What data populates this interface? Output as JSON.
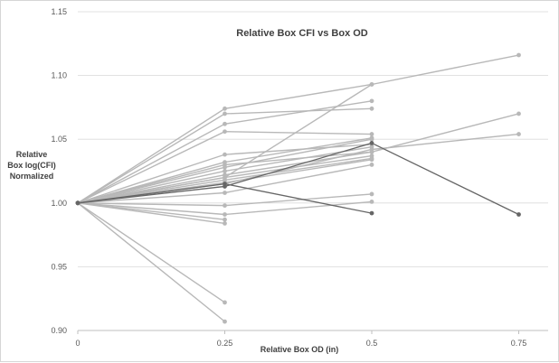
{
  "chart_data": {
    "type": "line",
    "title": "Relative Box CFI vs Box OD",
    "xlabel": "Relative Box OD (in)",
    "ylabel": [
      "Relative",
      "Box log(CFI)",
      "Normalized"
    ],
    "xlim": [
      0,
      0.8
    ],
    "ylim": [
      0.9,
      1.15
    ],
    "x_ticks": [
      0,
      0.25,
      0.5,
      0.75
    ],
    "x_tick_labels": [
      "0",
      "0.25",
      "0.5",
      "0.75"
    ],
    "y_ticks": [
      0.9,
      0.95,
      1.0,
      1.05,
      1.1,
      1.15
    ],
    "y_tick_labels": [
      "0.90",
      "0.95",
      "1.00",
      "1.05",
      "1.10",
      "1.15"
    ],
    "grid": "horizontal",
    "colors": {
      "light": "#b8b8b8",
      "dark": "#666666",
      "grid": "#d9d9d9",
      "axis": "#bfbfbf"
    },
    "series": [
      {
        "name": "s1",
        "style": "light",
        "x": [
          0,
          0.25,
          0.5
        ],
        "y": [
          1,
          1.074,
          1.093
        ]
      },
      {
        "name": "s2",
        "style": "light",
        "x": [
          0,
          0.25,
          0.5
        ],
        "y": [
          1,
          1.07,
          1.074
        ]
      },
      {
        "name": "s3",
        "style": "light",
        "x": [
          0,
          0.25,
          0.5
        ],
        "y": [
          1,
          1.062,
          1.08
        ]
      },
      {
        "name": "s4",
        "style": "light",
        "x": [
          0,
          0.25,
          0.5
        ],
        "y": [
          1,
          1.056,
          1.054
        ]
      },
      {
        "name": "s5",
        "style": "light",
        "x": [
          0,
          0.25,
          0.5
        ],
        "y": [
          1,
          1.038,
          1.046
        ]
      },
      {
        "name": "s6",
        "style": "light",
        "x": [
          0,
          0.25,
          0.5
        ],
        "y": [
          1,
          1.032,
          1.051
        ]
      },
      {
        "name": "s7",
        "style": "light",
        "x": [
          0,
          0.25,
          0.5
        ],
        "y": [
          1,
          1.028,
          1.05
        ]
      },
      {
        "name": "s8",
        "style": "light",
        "x": [
          0,
          0.25,
          0.5
        ],
        "y": [
          1,
          1.025,
          1.044
        ]
      },
      {
        "name": "s9",
        "style": "light",
        "x": [
          0,
          0.25,
          0.5
        ],
        "y": [
          1,
          1.022,
          1.04
        ]
      },
      {
        "name": "s10",
        "style": "light",
        "x": [
          0,
          0.25,
          0.5
        ],
        "y": [
          1,
          1.02,
          1.037
        ]
      },
      {
        "name": "s11",
        "style": "light",
        "x": [
          0,
          0.25,
          0.5
        ],
        "y": [
          1,
          1.018,
          1.035
        ]
      },
      {
        "name": "s12",
        "style": "light",
        "x": [
          0,
          0.25,
          0.5
        ],
        "y": [
          1,
          1.016,
          1.034
        ]
      },
      {
        "name": "s13",
        "style": "light",
        "x": [
          0,
          0.25,
          0.5
        ],
        "y": [
          1,
          1.008,
          1.03
        ]
      },
      {
        "name": "s14",
        "style": "light",
        "x": [
          0,
          0.25,
          0.5,
          0.75
        ],
        "y": [
          1,
          1.02,
          1.093,
          1.116
        ]
      },
      {
        "name": "s15",
        "style": "light",
        "x": [
          0,
          0.25,
          0.5,
          0.75
        ],
        "y": [
          1,
          1.03,
          1.04,
          1.07
        ]
      },
      {
        "name": "s16",
        "style": "light",
        "x": [
          0,
          0.25,
          0.5,
          0.75
        ],
        "y": [
          1,
          1.015,
          1.042,
          1.054
        ]
      },
      {
        "name": "s17",
        "style": "light",
        "x": [
          0,
          0.25,
          0.5
        ],
        "y": [
          1,
          0.998,
          1.007
        ]
      },
      {
        "name": "s18",
        "style": "light",
        "x": [
          0,
          0.25,
          0.5
        ],
        "y": [
          1,
          0.991,
          1.001
        ]
      },
      {
        "name": "s19",
        "style": "light",
        "x": [
          0,
          0.25
        ],
        "y": [
          1,
          0.987
        ]
      },
      {
        "name": "s20",
        "style": "light",
        "x": [
          0,
          0.25
        ],
        "y": [
          1,
          0.984
        ]
      },
      {
        "name": "s21",
        "style": "light",
        "x": [
          0,
          0.25
        ],
        "y": [
          1,
          0.922
        ]
      },
      {
        "name": "s22",
        "style": "light",
        "x": [
          0,
          0.25
        ],
        "y": [
          1,
          0.907
        ]
      },
      {
        "name": "d1",
        "style": "dark",
        "x": [
          0,
          0.25,
          0.5,
          0.75
        ],
        "y": [
          1,
          1.013,
          1.047,
          0.991
        ]
      },
      {
        "name": "d2",
        "style": "dark",
        "x": [
          0,
          0.25,
          0.5
        ],
        "y": [
          1,
          1.015,
          0.992
        ]
      }
    ]
  }
}
